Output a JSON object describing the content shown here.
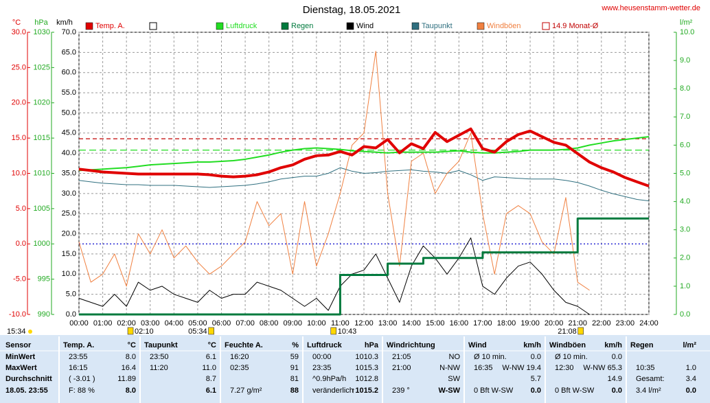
{
  "chart_data": {
    "type": "line",
    "title": "Dienstag, 18.05.2021",
    "source": "www.heusenstamm-wetter.de",
    "axis_titles": {
      "y": "°C",
      "y3": "hPa",
      "y4": "km/h",
      "y2": "l/m²"
    },
    "x": [
      0,
      0.5,
      1,
      1.5,
      2,
      2.5,
      3,
      3.5,
      4,
      4.5,
      5,
      5.5,
      6,
      6.5,
      7,
      7.5,
      8,
      8.5,
      9,
      9.5,
      10,
      10.5,
      11,
      11.5,
      12,
      12.5,
      13,
      13.5,
      14,
      14.5,
      15,
      15.5,
      16,
      16.5,
      17,
      17.5,
      18,
      18.5,
      19,
      19.5,
      20,
      20.5,
      21,
      21.5,
      22,
      22.5,
      23,
      23.5,
      24
    ],
    "xlim": [
      0,
      24
    ],
    "xticks": [
      {
        "value": 0,
        "label": "00:00"
      },
      {
        "value": 1,
        "label": "01:00"
      },
      {
        "value": 2,
        "label": "02:00"
      },
      {
        "value": 3,
        "label": "03:00"
      },
      {
        "value": 4,
        "label": "04:00"
      },
      {
        "value": 5,
        "label": "05:00"
      },
      {
        "value": 6,
        "label": "06:00"
      },
      {
        "value": 7,
        "label": "07:00"
      },
      {
        "value": 8,
        "label": "08:00"
      },
      {
        "value": 9,
        "label": "09:00"
      },
      {
        "value": 10,
        "label": "10:00"
      },
      {
        "value": 11,
        "label": "11:00"
      },
      {
        "value": 12,
        "label": "12:00"
      },
      {
        "value": 13,
        "label": "13:00"
      },
      {
        "value": 14,
        "label": "14:00"
      },
      {
        "value": 15,
        "label": "15:00"
      },
      {
        "value": 16,
        "label": "16:00"
      },
      {
        "value": 17,
        "label": "17:00"
      },
      {
        "value": 18,
        "label": "18:00"
      },
      {
        "value": 19,
        "label": "19:00"
      },
      {
        "value": 20,
        "label": "20:00"
      },
      {
        "value": 21,
        "label": "21:00"
      },
      {
        "value": 22,
        "label": "22:00"
      },
      {
        "value": 23,
        "label": "23:00"
      },
      {
        "value": 24,
        "label": "24:00"
      }
    ],
    "ylim": [
      -10,
      30
    ],
    "yticks": [
      {
        "value": 30,
        "label": "30.0"
      },
      {
        "value": 25,
        "label": "25.0"
      },
      {
        "value": 20,
        "label": "20.0"
      },
      {
        "value": 15,
        "label": "15.0"
      },
      {
        "value": 10,
        "label": "10.0"
      },
      {
        "value": 5,
        "label": "5.0"
      },
      {
        "value": 0,
        "label": "0.0"
      },
      {
        "value": -5,
        "label": "-5.0"
      },
      {
        "value": -10,
        "label": "-10.0"
      }
    ],
    "y3lim": [
      990,
      1030
    ],
    "y3ticks": [
      1030,
      1025,
      1020,
      1015,
      1010,
      1005,
      1000,
      995,
      990
    ],
    "y4lim": [
      0,
      70
    ],
    "y4ticks": [
      {
        "value": 70,
        "label": "70.0"
      },
      {
        "value": 65,
        "label": "65.0"
      },
      {
        "value": 60,
        "label": "60.0"
      },
      {
        "value": 55,
        "label": "55.0"
      },
      {
        "value": 50,
        "label": "50.0"
      },
      {
        "value": 45,
        "label": "45.0"
      },
      {
        "value": 40,
        "label": "40.0"
      },
      {
        "value": 35,
        "label": "35.0"
      },
      {
        "value": 30,
        "label": "30.0"
      },
      {
        "value": 25,
        "label": "25.0"
      },
      {
        "value": 20,
        "label": "20.0"
      },
      {
        "value": 15,
        "label": "15.0"
      },
      {
        "value": 10,
        "label": "10.0"
      },
      {
        "value": 5,
        "label": "5.0"
      },
      {
        "value": 0,
        "label": "0.0"
      }
    ],
    "y2lim": [
      0,
      10
    ],
    "y2ticks": [
      {
        "value": 10,
        "label": "10.0"
      },
      {
        "value": 9,
        "label": "9.0"
      },
      {
        "value": 8,
        "label": "8.0"
      },
      {
        "value": 7,
        "label": "7.0"
      },
      {
        "value": 6,
        "label": "6.0"
      },
      {
        "value": 5,
        "label": "5.0"
      },
      {
        "value": 4,
        "label": "4.0"
      },
      {
        "value": 3,
        "label": "3.0"
      },
      {
        "value": 2,
        "label": "2.0"
      },
      {
        "value": 1,
        "label": "1.0"
      },
      {
        "value": 0,
        "label": "0.0"
      }
    ],
    "grid": true,
    "series": [
      {
        "name": "Temp. A.",
        "color": "#e00000",
        "axis": "y",
        "width": 4,
        "values": [
          10.6,
          10.4,
          10.2,
          10.1,
          10.0,
          9.9,
          9.9,
          9.9,
          9.9,
          9.9,
          9.9,
          9.8,
          9.6,
          9.5,
          9.6,
          9.8,
          10.2,
          10.8,
          11.2,
          12.0,
          12.5,
          12.6,
          13.1,
          12.6,
          13.8,
          13.6,
          14.8,
          12.9,
          14.2,
          13.5,
          15.8,
          14.5,
          15.4,
          16.3,
          13.5,
          13.0,
          14.5,
          15.5,
          16.0,
          15.2,
          14.4,
          14.0,
          12.8,
          11.6,
          10.8,
          10.2,
          9.4,
          8.8,
          8.2
        ]
      },
      {
        "name": "Luftdruck",
        "color": "#22dd22",
        "axis": "y3",
        "width": 2,
        "values": [
          1010.4,
          1010.5,
          1010.6,
          1010.7,
          1010.8,
          1011.0,
          1011.2,
          1011.3,
          1011.4,
          1011.5,
          1011.6,
          1011.6,
          1011.7,
          1011.8,
          1012.0,
          1012.3,
          1012.6,
          1013.0,
          1013.3,
          1013.5,
          1013.6,
          1013.5,
          1013.4,
          1013.2,
          1013.1,
          1013.0,
          1012.9,
          1013.0,
          1013.0,
          1013.0,
          1013.0,
          1013.1,
          1013.2,
          1013.0,
          1012.9,
          1012.9,
          1013.0,
          1013.1,
          1013.3,
          1013.3,
          1013.3,
          1013.4,
          1013.6,
          1014.0,
          1014.3,
          1014.6,
          1014.8,
          1015.0,
          1015.2
        ]
      },
      {
        "name": "Regen",
        "color": "#007a3d",
        "axis": "y2",
        "width": 3,
        "step": true,
        "values": [
          0,
          0,
          0,
          0,
          0,
          0,
          0,
          0,
          0,
          0,
          0,
          0,
          0,
          0,
          0,
          0,
          0,
          0,
          0,
          0,
          0,
          0,
          1.4,
          1.4,
          1.4,
          1.4,
          1.8,
          1.8,
          1.8,
          2.0,
          2.0,
          2.0,
          2.0,
          2.0,
          2.2,
          2.2,
          2.2,
          2.2,
          2.2,
          2.2,
          2.2,
          2.2,
          3.4,
          3.4,
          3.4,
          3.4,
          3.4,
          3.4,
          3.4
        ]
      },
      {
        "name": "Wind",
        "color": "#000000",
        "axis": "y4",
        "width": 1,
        "values": [
          4,
          3,
          2,
          5,
          2,
          8,
          6,
          7,
          5,
          4,
          3,
          6,
          4,
          5,
          5,
          8,
          7,
          6,
          4,
          2,
          4,
          1,
          7,
          10,
          11,
          15,
          9,
          3,
          12,
          17,
          14,
          10,
          14,
          19,
          7,
          5,
          9,
          12,
          13,
          10,
          6,
          3,
          2,
          0,
          null,
          null,
          null,
          null,
          null
        ]
      },
      {
        "name": "Taupunkt",
        "color": "#2f6f7f",
        "axis": "y",
        "width": 1,
        "values": [
          9.0,
          8.8,
          8.6,
          8.5,
          8.4,
          8.4,
          8.3,
          8.3,
          8.3,
          8.2,
          8.1,
          8.0,
          8.1,
          8.2,
          8.3,
          8.5,
          8.8,
          9.2,
          9.4,
          9.6,
          9.6,
          10.0,
          10.8,
          10.3,
          10.0,
          10.1,
          10.3,
          10.4,
          10.5,
          10.3,
          10.2,
          10.0,
          10.4,
          9.8,
          9.0,
          9.5,
          9.4,
          9.3,
          9.2,
          9.2,
          9.2,
          9.0,
          8.7,
          8.2,
          7.6,
          7.1,
          6.7,
          6.3,
          6.1
        ]
      },
      {
        "name": "Windböen",
        "color": "#f08040",
        "axis": "y4",
        "width": 1,
        "values": [
          18,
          8,
          10,
          15,
          7,
          20,
          15,
          21,
          14,
          17,
          13,
          10,
          12,
          15,
          18,
          28,
          22,
          25,
          10,
          28,
          12,
          20,
          30,
          42,
          45,
          65.3,
          30,
          12,
          38,
          40,
          30,
          35,
          38,
          45,
          25,
          10,
          25,
          27,
          25,
          18,
          15,
          29,
          8,
          6,
          null,
          null,
          null,
          null,
          null
        ]
      }
    ],
    "reference_lines": [
      {
        "name": "14.9 Monat-Ø",
        "value": 14.9,
        "axis": "y",
        "color": "#c00000",
        "dash": "6 4"
      },
      {
        "value": 1013.3,
        "axis": "y3",
        "color": "#22dd22",
        "dash": "10 5"
      },
      {
        "value": 0,
        "axis": "y",
        "color": "#0000cc",
        "dash": "2 3"
      }
    ],
    "annotations": [
      {
        "text": "15:34"
      },
      {
        "text": "02:10",
        "x": 2.17
      },
      {
        "text": "05:34",
        "x": 5.57
      },
      {
        "text": "10:43",
        "x": 10.72
      },
      {
        "text": "21:08",
        "x": 21.13
      }
    ]
  },
  "table": {
    "corner": "Sensor",
    "row_labels": [
      "MinWert",
      "MaxWert",
      "Durchschnitt",
      "18.05. 23:55"
    ],
    "columns": [
      {
        "title": "Temp. A.",
        "unit": "°C",
        "rows": [
          [
            "23:55",
            "8.0"
          ],
          [
            "16:15",
            "16.4"
          ],
          [
            "( -3.01 )",
            "11.89"
          ],
          [
            "F: 88 %",
            "8.0"
          ]
        ]
      },
      {
        "title": "Taupunkt",
        "unit": "°C",
        "rows": [
          [
            "23:50",
            "6.1"
          ],
          [
            "11:20",
            "11.0"
          ],
          [
            null,
            "8.7"
          ],
          [
            null,
            "6.1"
          ]
        ]
      },
      {
        "title": "Feuchte A.",
        "unit": "%",
        "rows": [
          [
            "16:20",
            "59"
          ],
          [
            "02:35",
            "91"
          ],
          [
            null,
            "81"
          ],
          [
            "7.27 g/m²",
            "88"
          ]
        ]
      },
      {
        "title": "Luftdruck",
        "unit": "hPa",
        "rows": [
          [
            "00:00",
            "1010.3"
          ],
          [
            "23:35",
            "1015.3"
          ],
          [
            "^0.9hPa/h",
            "1012.8"
          ],
          [
            "veränderlich",
            "↑1015.2"
          ]
        ]
      },
      {
        "title": "Windrichtung",
        "unit": null,
        "rows": [
          [
            "21:05",
            "NO"
          ],
          [
            "21:00",
            "N-NW"
          ],
          [
            null,
            "SW"
          ],
          [
            "239 °",
            "W-SW"
          ]
        ]
      },
      {
        "title": "Wind",
        "unit": "km/h",
        "rows": [
          [
            "Ø 10 min.",
            "0.0"
          ],
          [
            "16:35",
            "W-NW 19.4"
          ],
          [
            null,
            "5.7"
          ],
          [
            "0 Bft W-SW",
            "0.0"
          ]
        ]
      },
      {
        "title": "Windböen",
        "unit": "km/h",
        "rows": [
          [
            "Ø 10 min.",
            "0.0"
          ],
          [
            "12:30",
            "W-NW 65.3"
          ],
          [
            null,
            "14.9"
          ],
          [
            "0 Bft W-SW",
            "0.0"
          ]
        ]
      },
      {
        "title": "Regen",
        "unit": "l/m²",
        "rows": [
          [
            null,
            null
          ],
          [
            "10:35",
            "1.0"
          ],
          [
            "Gesamt:",
            "3.4"
          ],
          [
            "3.4 l/m²",
            "0.0"
          ]
        ]
      }
    ]
  }
}
